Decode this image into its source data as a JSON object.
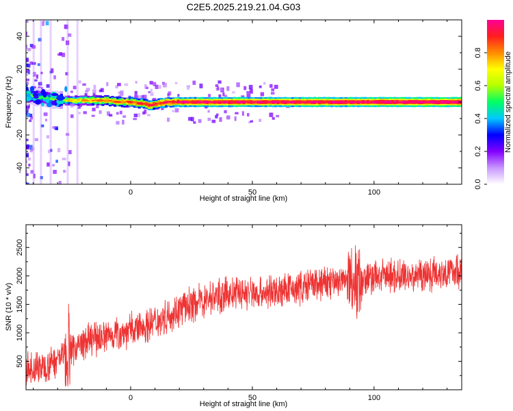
{
  "title": "C2E5.2025.219.21.04.G03",
  "chart_data": [
    {
      "type": "heatmap",
      "name": "spectrogram",
      "xlabel": "Height of straight line (km)",
      "ylabel": "Frequency (Hz)",
      "xlim": [
        -43,
        136
      ],
      "ylim": [
        -50,
        50
      ],
      "xticks": [
        0,
        50,
        100
      ],
      "yticks": [
        -40,
        -20,
        0,
        20,
        40
      ],
      "grid": false,
      "colorbar": {
        "label": "Normalized spectral amplitude",
        "range": [
          0,
          1
        ],
        "ticks": [
          0.0,
          0.2,
          0.4,
          0.6,
          0.8
        ],
        "colors": [
          "#ffffff",
          "#c896ff",
          "#8200ff",
          "#0000ff",
          "#00c8ff",
          "#00ff64",
          "#b4ff00",
          "#ffff00",
          "#ff8c00",
          "#ff1e1e",
          "#ff0096"
        ]
      },
      "ridge": [
        {
          "x": -43,
          "y": 4,
          "amp": 0.55
        },
        {
          "x": -38,
          "y": 3,
          "amp": 0.5
        },
        {
          "x": -33,
          "y": 2,
          "amp": 0.5
        },
        {
          "x": -30,
          "y": 1,
          "amp": 0.6
        },
        {
          "x": -25,
          "y": 1,
          "amp": 0.7
        },
        {
          "x": -20,
          "y": 1,
          "amp": 0.75
        },
        {
          "x": -15,
          "y": 1,
          "amp": 0.78
        },
        {
          "x": -10,
          "y": 1,
          "amp": 0.8
        },
        {
          "x": -5,
          "y": 0,
          "amp": 0.82
        },
        {
          "x": 0,
          "y": 0,
          "amp": 0.85
        },
        {
          "x": 5,
          "y": -1,
          "amp": 0.88
        },
        {
          "x": 8,
          "y": -2,
          "amp": 0.9
        },
        {
          "x": 11,
          "y": -1,
          "amp": 0.9
        },
        {
          "x": 15,
          "y": 0,
          "amp": 0.92
        },
        {
          "x": 20,
          "y": 0,
          "amp": 0.95
        },
        {
          "x": 40,
          "y": 0,
          "amp": 0.96
        },
        {
          "x": 60,
          "y": 0,
          "amp": 0.96
        },
        {
          "x": 80,
          "y": 0,
          "amp": 0.97
        },
        {
          "x": 95,
          "y": 0,
          "amp": 0.98
        },
        {
          "x": 110,
          "y": 0,
          "amp": 0.99
        },
        {
          "x": 136,
          "y": 0,
          "amp": 1.0
        }
      ]
    },
    {
      "type": "line",
      "name": "snr",
      "xlabel": "Height of straight line (km)",
      "ylabel": "SNR (10 * v/v)",
      "xlim": [
        -43,
        136
      ],
      "ylim": [
        0,
        2900
      ],
      "xticks": [
        0,
        50,
        100
      ],
      "yticks": [
        500,
        1000,
        1500,
        2000,
        2500
      ],
      "grid": false,
      "color": "#ee3333",
      "x": [
        -43,
        -35,
        -25,
        -15,
        -5,
        5,
        15,
        25,
        35,
        45,
        55,
        65,
        75,
        85,
        95,
        105,
        115,
        125,
        136
      ],
      "y": [
        350,
        420,
        700,
        900,
        1000,
        1100,
        1300,
        1500,
        1650,
        1700,
        1700,
        1750,
        1850,
        1900,
        1950,
        2000,
        2000,
        2050,
        2100
      ]
    }
  ]
}
